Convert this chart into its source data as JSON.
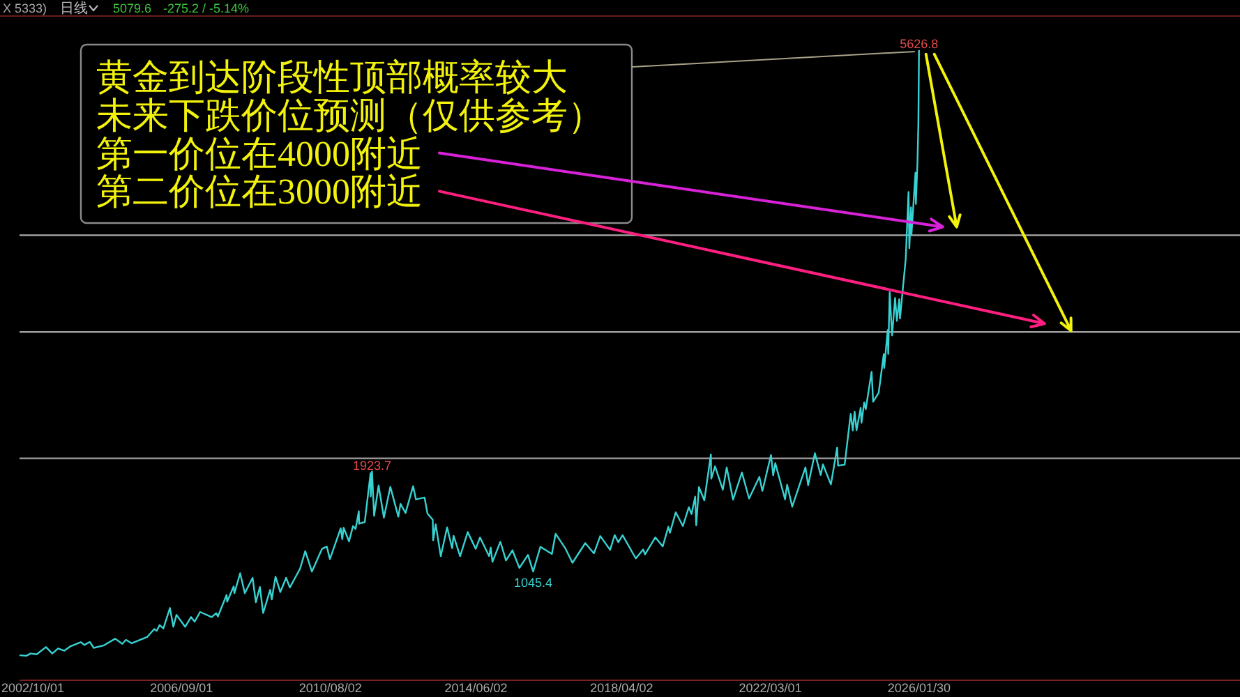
{
  "chart_data": {
    "type": "line",
    "annotations": [
      "X 5333)",
      "日线",
      "5079.6",
      "-275.2 / -5.14%",
      "黄金到达阶段性顶部概率较大",
      "未来下跌价位预测（仅供参考）",
      "第一价位在4000附近",
      "第二价位在3000附近"
    ],
    "x": [
      "2002-05-27",
      "2002-08-01",
      "2002-09-10",
      "2002-11-08",
      "2003-02-05",
      "2003-04-07",
      "2003-06-02",
      "2003-08-01",
      "2003-10-01",
      "2004-01-06",
      "2004-02-09",
      "2004-04-01",
      "2004-05-10",
      "2004-08-10",
      "2004-12-02",
      "2005-02-08",
      "2005-03-15",
      "2005-05-10",
      "2005-10-05",
      "2005-12-12",
      "2006-01-05",
      "2006-02-02",
      "2006-03-10",
      "2006-05-12",
      "2006-06-14",
      "2006-07-14",
      "2006-10-05",
      "2006-12-01",
      "2007-01-05",
      "2007-02-26",
      "2007-06-18",
      "2007-07-31",
      "2007-08-16",
      "2007-11-08",
      "2007-11-13",
      "2008-01-15",
      "2008-01-22",
      "2008-03-17",
      "2008-05-01",
      "2008-07-15",
      "2008-08-15",
      "2008-09-23",
      "2008-10-24",
      "2008-12-31",
      "2009-01-15",
      "2009-02-20",
      "2009-04-07",
      "2009-06-02",
      "2009-07-08",
      "2009-10-14",
      "2009-12-03",
      "2010-02-05",
      "2010-05-13",
      "2010-06-28",
      "2010-07-28",
      "2010-11-09",
      "2010-11-24",
      "2010-12-07",
      "2011-01-28",
      "2011-03-07",
      "2011-04-01",
      "2011-05-02",
      "2011-05-05",
      "2011-06-28",
      "2011-08-23",
      "2011-08-25",
      "2011-09-06",
      "2011-09-26",
      "2011-11-08",
      "2011-12-29",
      "2012-02-29",
      "2012-05-16",
      "2012-06-06",
      "2012-07-24",
      "2012-10-05",
      "2012-11-01",
      "2013-01-23",
      "2013-02-20",
      "2013-04-12",
      "2013-04-16",
      "2013-05-10",
      "2013-06-28",
      "2013-08-28",
      "2013-10-15",
      "2013-10-29",
      "2013-12-31",
      "2014-03-14",
      "2014-05-30",
      "2014-07-10",
      "2014-10-06",
      "2014-10-21",
      "2014-11-07",
      "2015-01-22",
      "2015-03-17",
      "2015-05-18",
      "2015-07-24",
      "2015-10-14",
      "2015-12-03",
      "2016-02-11",
      "2016-05-31",
      "2016-07-06",
      "2016-10-07",
      "2016-12-15",
      "2017-04-17",
      "2017-07-10",
      "2017-09-08",
      "2017-12-12",
      "2018-01-25",
      "2018-03-01",
      "2018-04-11",
      "2018-08-16",
      "2018-10-26",
      "2018-11-13",
      "2019-02-20",
      "2019-05-02",
      "2019-06-25",
      "2019-07-10",
      "2019-09-04",
      "2019-11-12",
      "2020-01-08",
      "2020-02-03",
      "2020-03-09",
      "2020-03-19",
      "2020-04-14",
      "2020-06-05",
      "2020-08-07",
      "2020-08-11",
      "2020-09-16",
      "2020-11-30",
      "2021-01-06",
      "2021-03-08",
      "2021-06-01",
      "2021-08-09",
      "2021-11-16",
      "2021-12-15",
      "2022-03-08",
      "2022-03-29",
      "2022-04-18",
      "2022-07-21",
      "2022-08-10",
      "2022-09-28",
      "2023-02-02",
      "2023-02-28",
      "2023-05-04",
      "2023-06-29",
      "2023-07-20",
      "2023-10-05",
      "2023-12-04",
      "2023-12-13",
      "2024-02-14",
      "2024-04-12",
      "2024-05-02",
      "2024-05-20",
      "2024-06-07",
      "2024-07-17",
      "2024-07-25",
      "2024-08-20",
      "2024-09-04",
      "2024-10-30",
      "2024-11-14",
      "2025-01-06",
      "2025-02-24",
      "2025-02-28",
      "2025-04-03",
      "2025-04-08",
      "2025-04-22",
      "2025-05-15",
      "2025-06-13",
      "2025-06-30",
      "2025-07-23",
      "2025-07-30",
      "2025-09-23",
      "2025-10-20",
      "2025-10-28",
      "2025-11-13",
      "2025-11-17",
      "2025-12-26",
      "2025-12-30",
      "2026-01-14",
      "2026-01-23",
      "2026-01-29"
    ],
    "series": [
      {
        "color": "#38d2d2",
        "values": [
          310,
          305,
          325,
          318,
          382,
          325,
          370,
          350,
          390,
          425,
          400,
          427,
          375,
          395,
          455,
          410,
          445,
          415,
          470,
          540,
          525,
          575,
          545,
          725,
          560,
          665,
          560,
          645,
          605,
          690,
          645,
          680,
          650,
          840,
          780,
          915,
          855,
          1030,
          855,
          990,
          775,
          910,
          680,
          885,
          800,
          1000,
          865,
          990,
          905,
          1070,
          1225,
          1045,
          1245,
          1265,
          1155,
          1425,
          1330,
          1430,
          1310,
          1445,
          1420,
          1575,
          1465,
          1480,
          1910,
          1705,
          1923.7,
          1535,
          1800,
          1520,
          1790,
          1527,
          1640,
          1560,
          1795,
          1680,
          1695,
          1555,
          1500,
          1320,
          1460,
          1180,
          1433,
          1250,
          1360,
          1180,
          1392,
          1245,
          1345,
          1180,
          1255,
          1130,
          1307,
          1142,
          1232,
          1077,
          1191,
          1045.4,
          1263,
          1200,
          1377,
          1250,
          1122,
          1295,
          1205,
          1357,
          1236,
          1366,
          1303,
          1365,
          1160,
          1240,
          1196,
          1346,
          1266,
          1439,
          1385,
          1566,
          1445,
          1611,
          1550,
          1704,
          1451,
          1788,
          1670,
          2075,
          1862,
          1970,
          1764,
          1959,
          1677,
          1916,
          1687,
          1877,
          1753,
          2070,
          1890,
          1998,
          1680,
          1808,
          1615,
          1960,
          1805,
          2085,
          1893,
          1987,
          1810,
          2135,
          1975,
          1985,
          2430,
          2285,
          2450,
          2287,
          2483,
          2353,
          2531,
          2472,
          2800,
          2537,
          2615,
          2955,
          2833,
          3167,
          2957,
          3500,
          3120,
          3450,
          3247,
          3439,
          3268,
          3791,
          4380,
          3886,
          4245,
          4000,
          4550,
          4275,
          4640,
          4990,
          5626.8
        ],
        "value_labels": [
          null,
          null,
          null,
          null,
          null,
          null,
          null,
          null,
          null,
          null,
          null,
          null,
          null,
          null,
          null,
          null,
          null,
          null,
          null,
          null,
          null,
          null,
          null,
          null,
          null,
          null,
          null,
          null,
          null,
          null,
          null,
          null,
          null,
          null,
          null,
          null,
          null,
          null,
          null,
          null,
          null,
          null,
          null,
          null,
          null,
          null,
          null,
          null,
          null,
          null,
          null,
          null,
          null,
          null,
          null,
          null,
          null,
          null,
          null,
          null,
          null,
          null,
          null,
          null,
          null,
          null,
          "1923.7",
          null,
          null,
          null,
          null,
          null,
          null,
          null,
          null,
          null,
          null,
          null,
          null,
          null,
          null,
          null,
          null,
          null,
          null,
          null,
          null,
          null,
          null,
          null,
          null,
          null,
          null,
          null,
          null,
          null,
          null,
          "1045.4",
          null,
          null,
          null,
          null,
          null,
          null,
          null,
          null,
          null,
          null,
          null,
          null,
          null,
          null,
          null,
          null,
          null,
          null,
          null,
          null,
          null,
          null,
          null,
          null,
          null,
          null,
          null,
          null,
          null,
          null,
          null,
          null,
          null,
          null,
          null,
          null,
          null,
          null,
          null,
          null,
          null,
          null,
          null,
          null,
          null,
          null,
          null,
          null,
          null,
          null,
          null,
          null,
          null,
          null,
          null,
          null,
          null,
          null,
          null,
          null,
          null,
          null,
          null,
          null,
          null,
          null,
          null,
          null,
          null,
          null,
          null,
          null,
          null,
          null,
          null,
          null,
          null,
          null,
          null,
          null,
          null,
          null,
          "5626.8"
        ]
      }
    ],
    "xlim": [
      "2002-05-27",
      "2034-07-12"
    ],
    "xticks": [
      {
        "value": "2002-10-01",
        "label": "2002/10/01"
      },
      {
        "value": "2006-09-01",
        "label": "2006/09/01"
      },
      {
        "value": "2010-08-02",
        "label": "2010/08/02"
      },
      {
        "value": "2014-06-02",
        "label": "2014/06/02"
      },
      {
        "value": "2018-04-02",
        "label": "2018/04/02"
      },
      {
        "value": "2022-03-01",
        "label": "2022/03/01"
      },
      {
        "value": "2026-01-30",
        "label": "2026/01/30"
      }
    ],
    "ylim": [
      90,
      5920
    ],
    "ref_lines": [
      {
        "axis": "y",
        "value": 4000,
        "color": "#a0a0a0"
      },
      {
        "axis": "y",
        "value": 3150,
        "color": "#a0a0a0"
      },
      {
        "axis": "y",
        "value": 2040,
        "color": "#a0a0a0"
      }
    ],
    "tick_labels": "x",
    "marker": "none"
  }
}
